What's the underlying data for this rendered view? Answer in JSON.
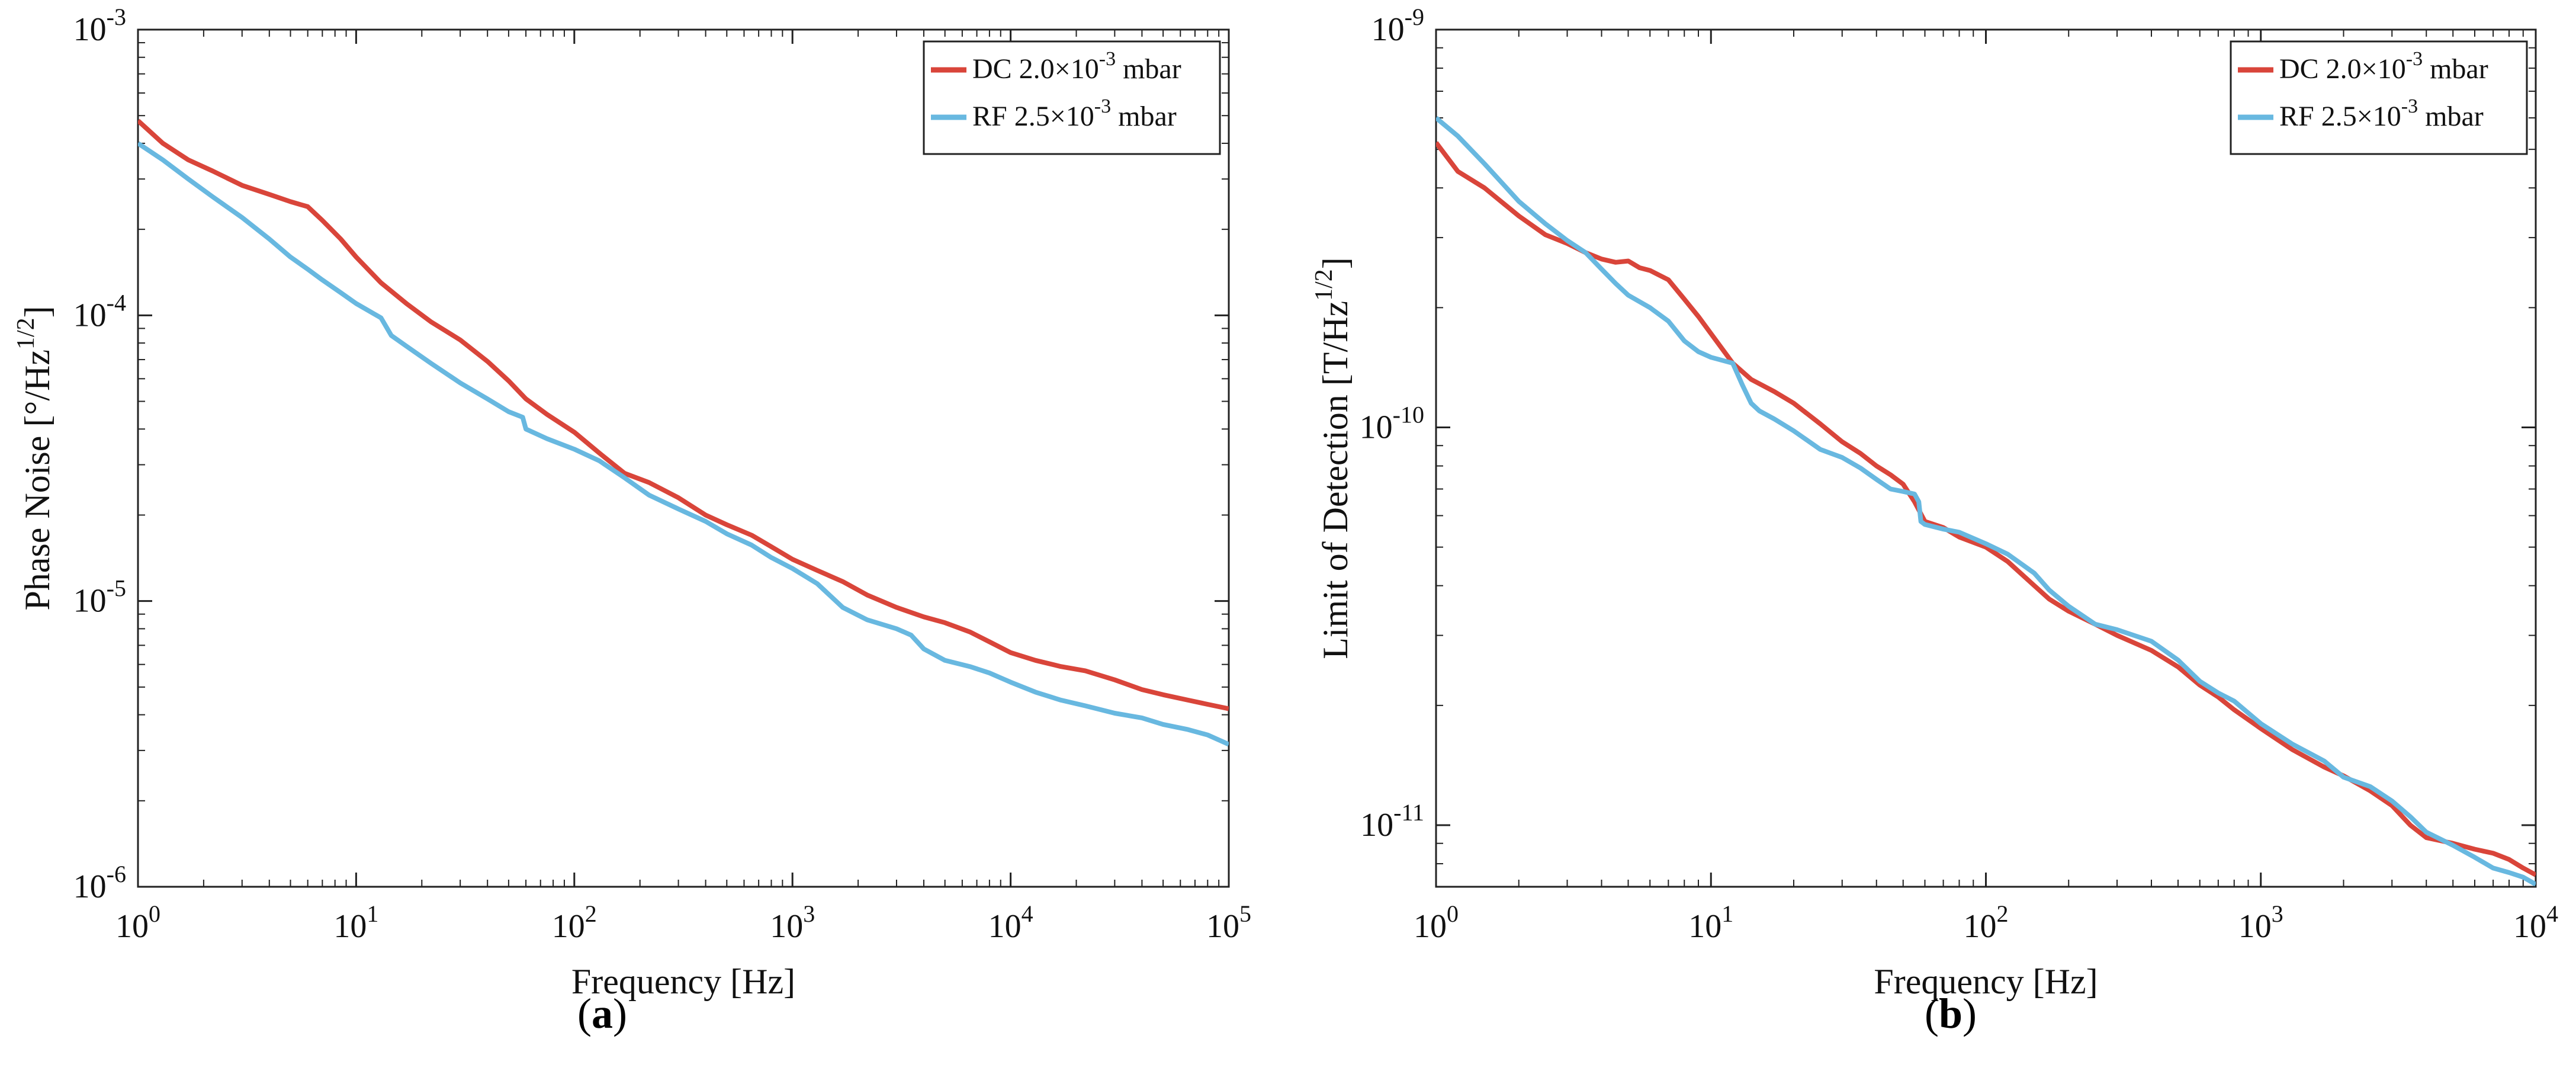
{
  "colors": {
    "dc": "#d9453a",
    "rf": "#68b8e0",
    "axis": "#222222"
  },
  "chart_data": [
    {
      "type": "line",
      "panel": "a",
      "panel_label": "a",
      "xlabel": "Frequency [Hz]",
      "ylabel_main": "Phase Noise [°/Hz",
      "ylabel_sup": "1/2",
      "ylabel_end": "]",
      "xscale": "log",
      "yscale": "log",
      "xlim": [
        1,
        100000
      ],
      "ylim": [
        1e-06,
        0.001
      ],
      "xticks": [
        {
          "value": 1,
          "base": "10",
          "exp": "0"
        },
        {
          "value": 10,
          "base": "10",
          "exp": "1"
        },
        {
          "value": 100,
          "base": "10",
          "exp": "2"
        },
        {
          "value": 1000,
          "base": "10",
          "exp": "3"
        },
        {
          "value": 10000,
          "base": "10",
          "exp": "4"
        },
        {
          "value": 100000,
          "base": "10",
          "exp": "5"
        }
      ],
      "yticks": [
        {
          "value": 1e-06,
          "base": "10",
          "exp": "-6"
        },
        {
          "value": 1e-05,
          "base": "10",
          "exp": "-5"
        },
        {
          "value": 0.0001,
          "base": "10",
          "exp": "-4"
        },
        {
          "value": 0.001,
          "base": "10",
          "exp": "-3"
        }
      ],
      "legend": {
        "location": "top-right",
        "entries": [
          {
            "key": "dc",
            "pre": "DC 2.0×10",
            "sup": "-3",
            "post": " mbar"
          },
          {
            "key": "rf",
            "pre": "RF 2.5×10",
            "sup": "-3",
            "post": " mbar"
          }
        ]
      },
      "series": [
        {
          "name": "DC 2.0×10^-3 mbar",
          "key": "dc",
          "x": [
            1,
            1.3,
            1.7,
            2.2,
            3,
            4,
            5,
            6,
            7,
            8.5,
            10,
            13,
            17,
            22,
            30,
            40,
            50,
            60,
            75,
            100,
            130,
            170,
            220,
            300,
            400,
            500,
            650,
            800,
            1000,
            1300,
            1700,
            2200,
            3000,
            4000,
            5000,
            6500,
            8000,
            10000,
            13000,
            17000,
            22000,
            30000,
            40000,
            50000,
            65000,
            80000,
            100000
          ],
          "y": [
            0.00048,
            0.0004,
            0.00035,
            0.00032,
            0.000285,
            0.000265,
            0.00025,
            0.00024,
            0.000215,
            0.000185,
            0.00016,
            0.00013,
            0.00011,
            9.5e-05,
            8.2e-05,
            6.9e-05,
            5.9e-05,
            5.1e-05,
            4.5e-05,
            3.9e-05,
            3.3e-05,
            2.8e-05,
            2.6e-05,
            2.3e-05,
            2e-05,
            1.85e-05,
            1.7e-05,
            1.55e-05,
            1.4e-05,
            1.28e-05,
            1.17e-05,
            1.05e-05,
            9.5e-06,
            8.8e-06,
            8.4e-06,
            7.8e-06,
            7.2e-06,
            6.6e-06,
            6.2e-06,
            5.9e-06,
            5.7e-06,
            5.3e-06,
            4.9e-06,
            4.7e-06,
            4.5e-06,
            4.35e-06,
            4.2e-06
          ]
        },
        {
          "name": "RF 2.5×10^-3 mbar",
          "key": "rf",
          "x": [
            1,
            1.3,
            1.7,
            2.2,
            3,
            4,
            5,
            6,
            7,
            8.5,
            10,
            13,
            14.5,
            17,
            22,
            30,
            40,
            50,
            58,
            60,
            75,
            100,
            130,
            170,
            220,
            300,
            400,
            500,
            650,
            800,
            1000,
            1300,
            1700,
            2200,
            3000,
            3500,
            4000,
            5000,
            6500,
            8000,
            10000,
            13000,
            17000,
            22000,
            30000,
            40000,
            50000,
            65000,
            80000,
            100000
          ],
          "y": [
            0.0004,
            0.00035,
            0.0003,
            0.00026,
            0.00022,
            0.000185,
            0.00016,
            0.000145,
            0.000133,
            0.00012,
            0.00011,
            9.8e-05,
            8.5e-05,
            7.8e-05,
            6.8e-05,
            5.8e-05,
            5.1e-05,
            4.6e-05,
            4.4e-05,
            4e-05,
            3.7e-05,
            3.4e-05,
            3.1e-05,
            2.7e-05,
            2.35e-05,
            2.1e-05,
            1.9e-05,
            1.72e-05,
            1.57e-05,
            1.42e-05,
            1.3e-05,
            1.15e-05,
            9.5e-06,
            8.6e-06,
            8e-06,
            7.6e-06,
            6.8e-06,
            6.2e-06,
            5.9e-06,
            5.6e-06,
            5.2e-06,
            4.8e-06,
            4.5e-06,
            4.3e-06,
            4.05e-06,
            3.9e-06,
            3.7e-06,
            3.55e-06,
            3.4e-06,
            3.15e-06
          ]
        }
      ]
    },
    {
      "type": "line",
      "panel": "b",
      "panel_label": "b",
      "xlabel": "Frequency [Hz]",
      "ylabel_main": "Limit of Detection [T/Hz",
      "ylabel_sup": "1/2",
      "ylabel_end": "]",
      "xscale": "log",
      "yscale": "log",
      "xlim": [
        1,
        10000
      ],
      "ylim": [
        7e-12,
        1e-09
      ],
      "xticks": [
        {
          "value": 1,
          "base": "10",
          "exp": "0"
        },
        {
          "value": 10,
          "base": "10",
          "exp": "1"
        },
        {
          "value": 100,
          "base": "10",
          "exp": "2"
        },
        {
          "value": 1000,
          "base": "10",
          "exp": "3"
        },
        {
          "value": 10000,
          "base": "10",
          "exp": "4"
        }
      ],
      "yticks": [
        {
          "value": 1e-11,
          "base": "10",
          "exp": "-11"
        },
        {
          "value": 1e-10,
          "base": "10",
          "exp": "-10"
        },
        {
          "value": 1e-09,
          "base": "10",
          "exp": "-9"
        }
      ],
      "legend": {
        "location": "top-right",
        "entries": [
          {
            "key": "dc",
            "pre": "DC 2.0×10",
            "sup": "-3",
            "post": " mbar"
          },
          {
            "key": "rf",
            "pre": "RF 2.5×10",
            "sup": "-3",
            "post": " mbar"
          }
        ]
      },
      "series": [
        {
          "name": "DC 2.0×10^-3 mbar",
          "key": "dc",
          "x": [
            1,
            1.2,
            1.5,
            2,
            2.5,
            3,
            3.5,
            4,
            4.5,
            5,
            5.5,
            6,
            7,
            8,
            9,
            10,
            12,
            14,
            17,
            20,
            25,
            30,
            35,
            40,
            45,
            50,
            55,
            60,
            70,
            80,
            100,
            120,
            150,
            170,
            200,
            250,
            300,
            400,
            500,
            600,
            700,
            800,
            1000,
            1300,
            1700,
            2000,
            2500,
            3000,
            3500,
            4000,
            5000,
            6000,
            7000,
            8000,
            9000,
            10000
          ],
          "y": [
            5.2e-10,
            4.4e-10,
            4e-10,
            3.4e-10,
            3.05e-10,
            2.9e-10,
            2.75e-10,
            2.65e-10,
            2.6e-10,
            2.62e-10,
            2.52e-10,
            2.48e-10,
            2.35e-10,
            2.1e-10,
            1.9e-10,
            1.72e-10,
            1.45e-10,
            1.32e-10,
            1.23e-10,
            1.15e-10,
            1.02e-10,
            9.2e-11,
            8.6e-11,
            8e-11,
            7.6e-11,
            7.2e-11,
            6.5e-11,
            5.8e-11,
            5.6e-11,
            5.3e-11,
            5e-11,
            4.6e-11,
            4e-11,
            3.7e-11,
            3.45e-11,
            3.2e-11,
            3e-11,
            2.75e-11,
            2.5e-11,
            2.25e-11,
            2.1e-11,
            1.95e-11,
            1.75e-11,
            1.55e-11,
            1.4e-11,
            1.33e-11,
            1.22e-11,
            1.12e-11,
            1e-11,
            9.3e-12,
            9e-12,
            8.7e-12,
            8.5e-12,
            8.2e-12,
            7.8e-12,
            7.5e-12
          ]
        },
        {
          "name": "RF 2.5×10^-3 mbar",
          "key": "rf",
          "x": [
            1,
            1.2,
            1.5,
            2,
            2.5,
            3,
            3.5,
            4,
            4.5,
            5,
            6,
            7,
            8,
            9,
            10,
            12,
            13,
            14,
            15,
            17,
            20,
            25,
            30,
            35,
            40,
            45,
            50,
            55,
            57,
            58,
            60,
            70,
            80,
            100,
            120,
            150,
            170,
            200,
            250,
            300,
            400,
            500,
            600,
            700,
            800,
            1000,
            1300,
            1700,
            2000,
            2500,
            3000,
            3500,
            4000,
            5000,
            6000,
            7000,
            8000,
            9000,
            10000
          ],
          "y": [
            6e-10,
            5.4e-10,
            4.6e-10,
            3.7e-10,
            3.25e-10,
            2.95e-10,
            2.75e-10,
            2.5e-10,
            2.3e-10,
            2.15e-10,
            2e-10,
            1.85e-10,
            1.65e-10,
            1.55e-10,
            1.5e-10,
            1.45e-10,
            1.28e-10,
            1.15e-10,
            1.1e-10,
            1.05e-10,
            9.8e-11,
            8.8e-11,
            8.4e-11,
            7.9e-11,
            7.4e-11,
            7e-11,
            6.9e-11,
            6.8e-11,
            6.5e-11,
            5.8e-11,
            5.7e-11,
            5.55e-11,
            5.45e-11,
            5.1e-11,
            4.8e-11,
            4.3e-11,
            3.9e-11,
            3.55e-11,
            3.2e-11,
            3.1e-11,
            2.9e-11,
            2.6e-11,
            2.3e-11,
            2.15e-11,
            2.05e-11,
            1.8e-11,
            1.6e-11,
            1.45e-11,
            1.32e-11,
            1.25e-11,
            1.15e-11,
            1.05e-11,
            9.6e-12,
            8.9e-12,
            8.3e-12,
            7.8e-12,
            7.6e-12,
            7.4e-12,
            7.1e-12
          ]
        }
      ]
    }
  ]
}
